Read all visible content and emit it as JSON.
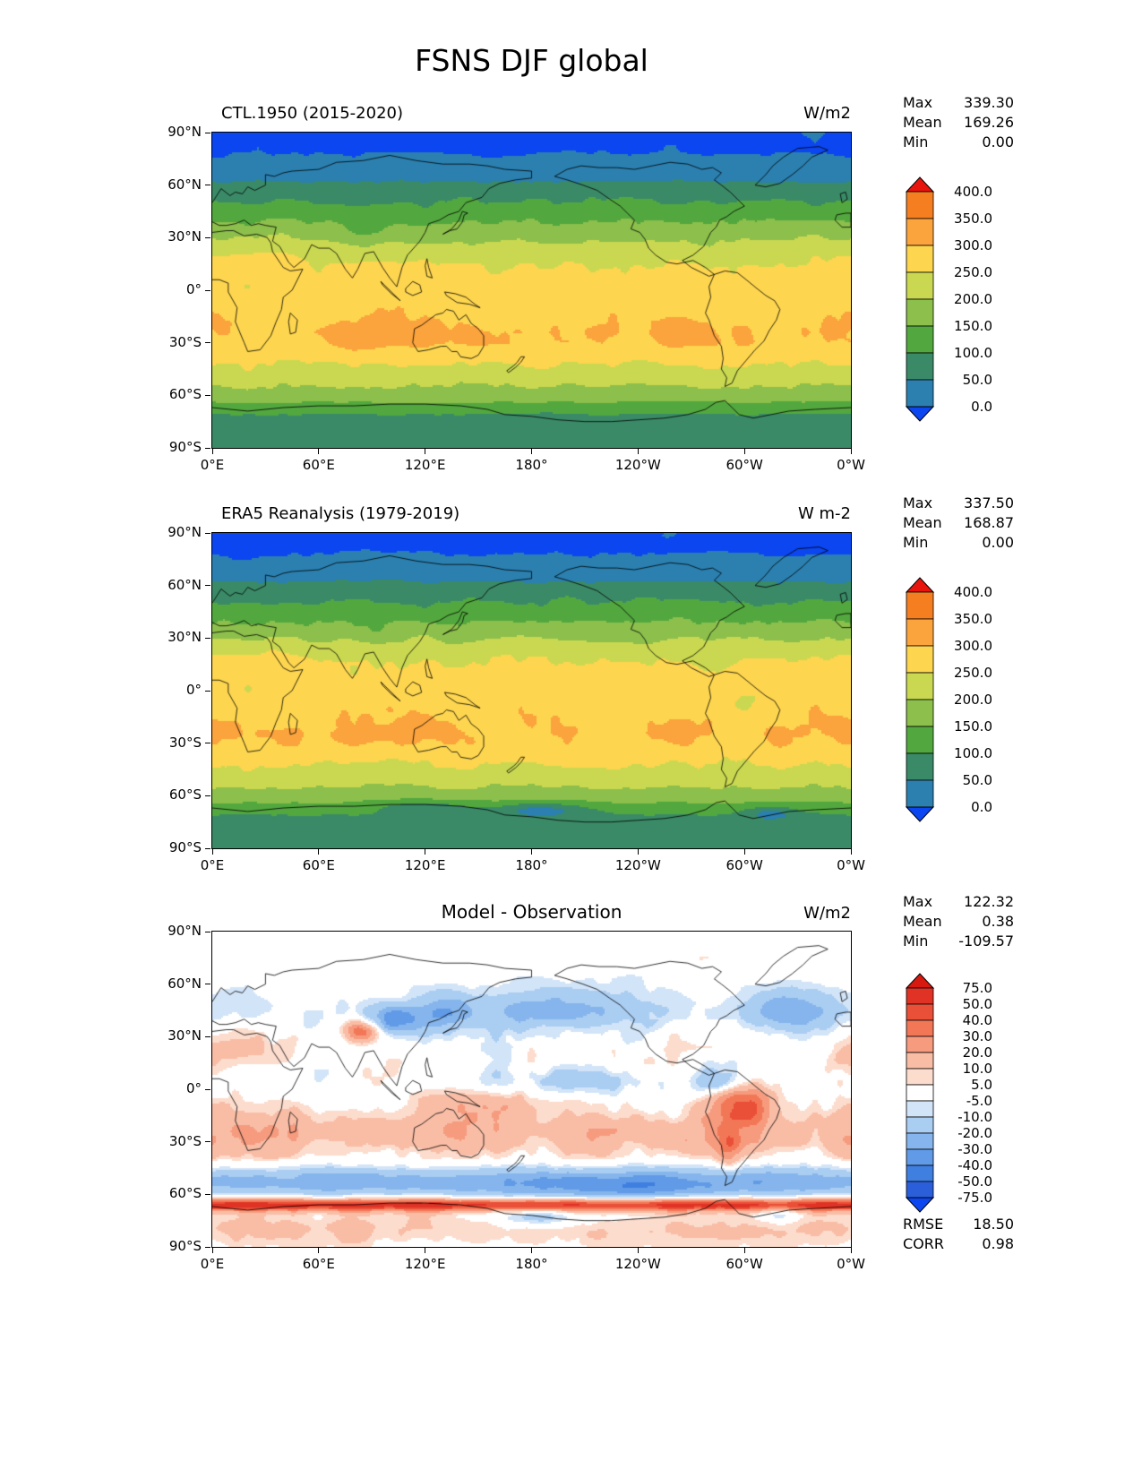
{
  "figure_title": "FSNS DJF global",
  "chart_data": [
    {
      "type": "heatmap",
      "title": "CTL.1950 (2015-2020)",
      "units": "W/m2",
      "stats": [
        {
          "label": "Max",
          "value": "339.30"
        },
        {
          "label": "Mean",
          "value": "169.26"
        },
        {
          "label": "Min",
          "value": "0.00"
        }
      ],
      "x_tick_labels": [
        "0°E",
        "60°E",
        "120°E",
        "180°",
        "120°W",
        "60°W",
        "0°W"
      ],
      "y_tick_labels": [
        "90°N",
        "60°N",
        "30°N",
        "0°",
        "30°S",
        "60°S",
        "90°S"
      ],
      "colorbar": {
        "extend": "both",
        "boundaries": [
          0,
          50,
          100,
          150,
          200,
          250,
          300,
          350,
          400
        ],
        "colors_low_to_high": [
          "#0b46f0",
          "#2b80b0",
          "#3a8a67",
          "#52a83e",
          "#8cbf4b",
          "#c9d850",
          "#fdd54f",
          "#fba33c",
          "#f57e20",
          "#e8150d"
        ]
      },
      "field": "model"
    },
    {
      "type": "heatmap",
      "title": "ERA5 Reanalysis (1979-2019)",
      "units": "W m-2",
      "stats": [
        {
          "label": "Max",
          "value": "337.50"
        },
        {
          "label": "Mean",
          "value": "168.87"
        },
        {
          "label": "Min",
          "value": "0.00"
        }
      ],
      "x_tick_labels": [
        "0°E",
        "60°E",
        "120°E",
        "180°",
        "120°W",
        "60°W",
        "0°W"
      ],
      "y_tick_labels": [
        "90°N",
        "60°N",
        "30°N",
        "0°",
        "30°S",
        "60°S",
        "90°S"
      ],
      "colorbar": {
        "extend": "both",
        "boundaries": [
          0,
          50,
          100,
          150,
          200,
          250,
          300,
          350,
          400
        ],
        "colors_low_to_high": [
          "#0b46f0",
          "#2b80b0",
          "#3a8a67",
          "#52a83e",
          "#8cbf4b",
          "#c9d850",
          "#fdd54f",
          "#fba33c",
          "#f57e20",
          "#e8150d"
        ]
      },
      "field": "era5"
    },
    {
      "type": "heatmap",
      "title": "Model - Observation",
      "units": "W/m2",
      "stats": [
        {
          "label": "Max",
          "value": "122.32"
        },
        {
          "label": "Mean",
          "value": "0.38"
        },
        {
          "label": "Min",
          "value": "-109.57"
        }
      ],
      "extra_stats": [
        {
          "label": "RMSE",
          "value": "18.50"
        },
        {
          "label": "CORR",
          "value": "0.98"
        }
      ],
      "x_tick_labels": [
        "0°E",
        "60°E",
        "120°E",
        "180°",
        "120°W",
        "60°W",
        "0°W"
      ],
      "y_tick_labels": [
        "90°N",
        "60°N",
        "30°N",
        "0°",
        "30°S",
        "60°S",
        "90°S"
      ],
      "colorbar": {
        "extend": "both",
        "boundaries": [
          -75,
          -50,
          -40,
          -30,
          -20,
          -10,
          -5,
          5,
          10,
          20,
          30,
          40,
          50,
          75
        ],
        "colors_low_to_high": [
          "#0b46f0",
          "#2b5fd9",
          "#3f7fe0",
          "#619ae6",
          "#85b5ec",
          "#aacdf2",
          "#d2e4f8",
          "#ffffff",
          "#fcdccd",
          "#f9bda6",
          "#f69b7e",
          "#f27757",
          "#ea4f38",
          "#e03325",
          "#d7190f"
        ]
      },
      "field": "diff"
    }
  ]
}
